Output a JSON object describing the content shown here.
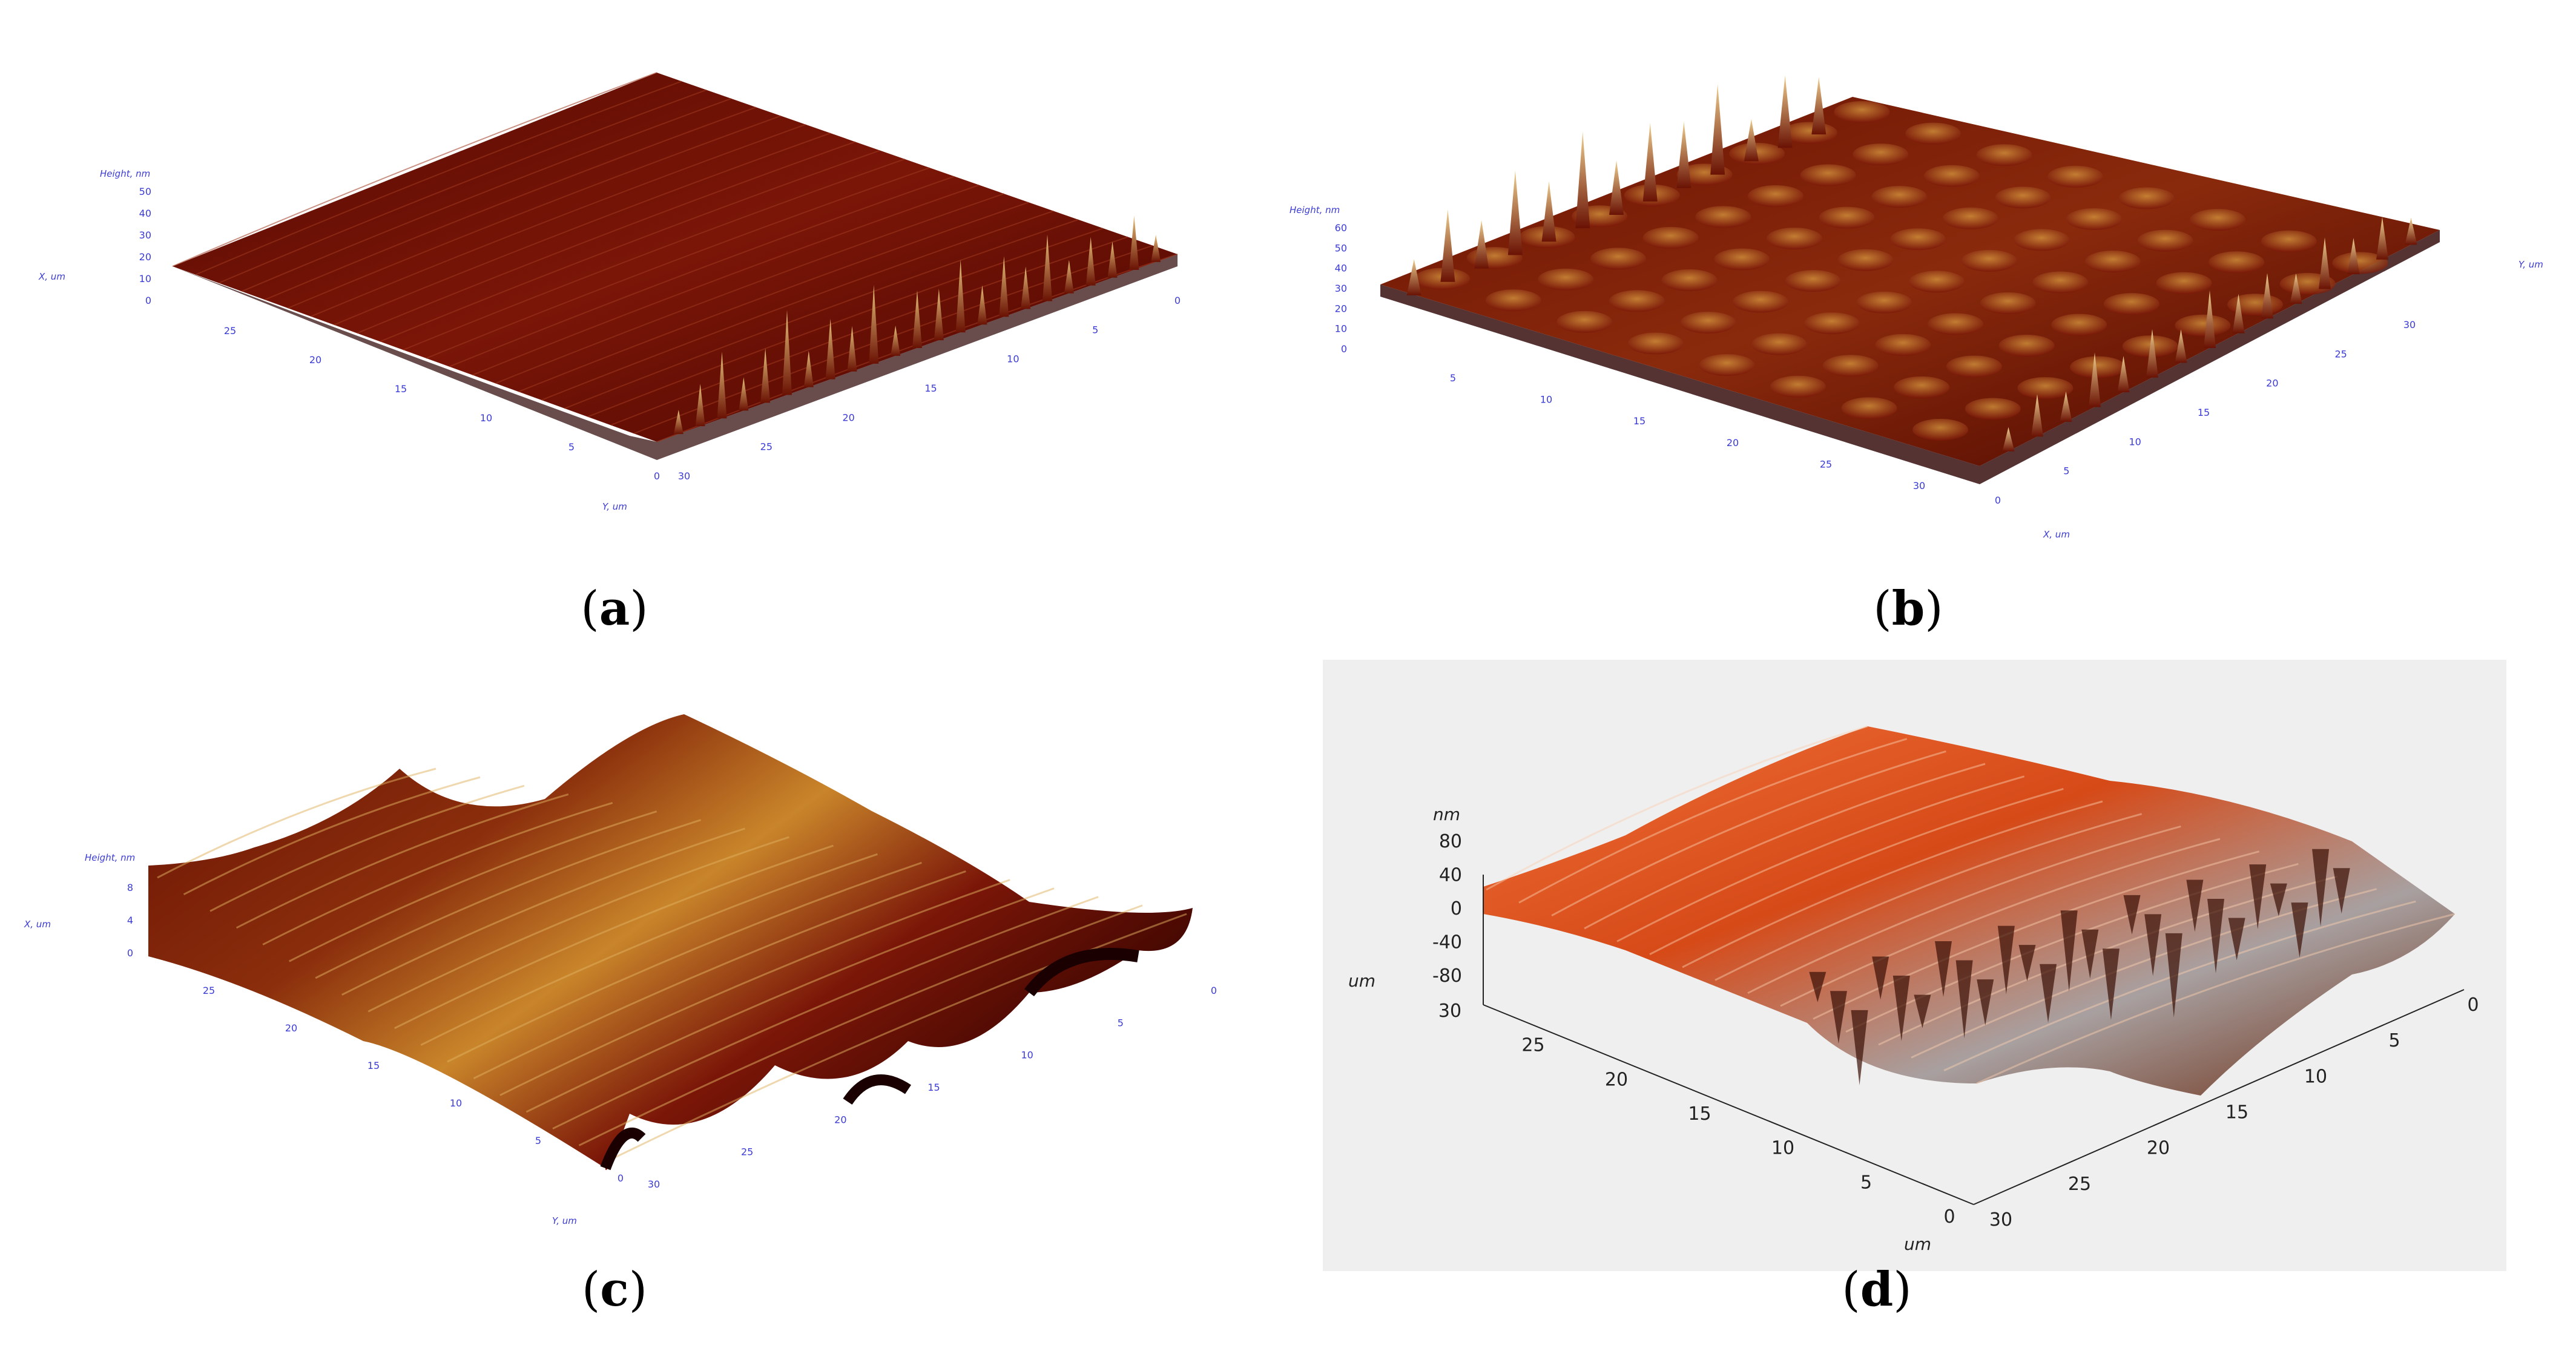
{
  "panels": [
    {
      "id": "a",
      "caption_letter": "a",
      "z_axis_label": "Height, nm",
      "z_ticks": [
        "50",
        "40",
        "30",
        "20",
        "10",
        "0"
      ],
      "x_axis_label": "X, um",
      "y_axis_label": "Y, um",
      "left_ticks": [
        "25",
        "20",
        "15",
        "10",
        "5",
        "0"
      ],
      "right_ticks": [
        "30",
        "25",
        "20",
        "15",
        "10",
        "5",
        "0"
      ],
      "corner_left": "0",
      "corner_right": "30"
    },
    {
      "id": "b",
      "caption_letter": "b",
      "z_axis_label": "Height, nm",
      "z_ticks": [
        "60",
        "50",
        "40",
        "30",
        "20",
        "10",
        "0"
      ],
      "x_axis_label": "X, um",
      "y_axis_label": "Y, um",
      "left_ticks": [
        "5",
        "10",
        "15",
        "20",
        "25",
        "30"
      ],
      "right_ticks": [
        "0",
        "5",
        "10",
        "15",
        "20",
        "25",
        "30"
      ],
      "corner_left": "30",
      "corner_right": "0"
    },
    {
      "id": "c",
      "caption_letter": "c",
      "z_axis_label": "Height, nm",
      "z_ticks": [
        "8",
        "4",
        "0"
      ],
      "x_axis_label": "X, um",
      "y_axis_label": "Y, um",
      "left_ticks": [
        "25",
        "20",
        "15",
        "10",
        "5",
        "0"
      ],
      "right_ticks": [
        "30",
        "25",
        "20",
        "15",
        "10",
        "5",
        "0"
      ],
      "corner_left": "0",
      "corner_right": "30"
    },
    {
      "id": "d",
      "caption_letter": "d",
      "z_axis_label": "nm",
      "z_ticks": [
        "80",
        "40",
        "0",
        "-40",
        "-80"
      ],
      "left_axis_label": "um",
      "bottom_axis_label": "um",
      "left_ticks": [
        "30",
        "25",
        "20",
        "15",
        "10",
        "5",
        "0"
      ],
      "right_ticks": [
        "30",
        "25",
        "20",
        "15",
        "10",
        "5",
        "0"
      ]
    }
  ],
  "colors": {
    "afm_dark": "#3a0000",
    "afm_mid": "#7a1608",
    "afm_light": "#c9852a",
    "afm_peak": "#e8c27a",
    "d_dark": "#5a1a08",
    "d_mid": "#d64a18",
    "d_light": "#f5a070",
    "axis_blue": "#3b3bd6",
    "d_background": "#efefef"
  }
}
